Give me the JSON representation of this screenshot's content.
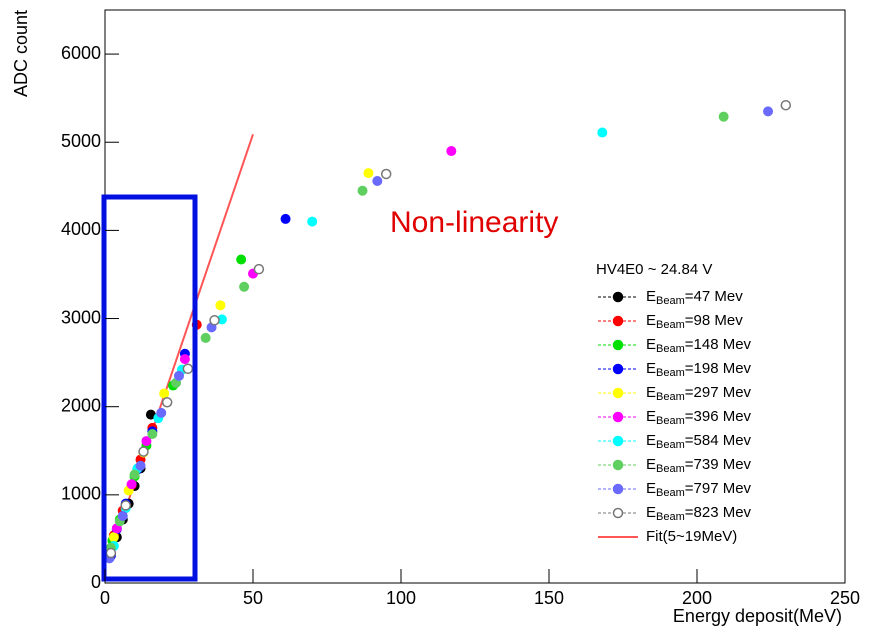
{
  "chart_data": {
    "type": "scatter",
    "xlabel": "Energy deposit(MeV)",
    "ylabel": "ADC count",
    "xlim": [
      0,
      250
    ],
    "ylim": [
      0,
      6500
    ],
    "xticks": [
      0,
      50,
      100,
      150,
      200,
      250
    ],
    "yticks": [
      0,
      1000,
      2000,
      3000,
      4000,
      5000,
      6000
    ],
    "legend_title": "HV4E0 ~ 24.84 V",
    "legend_position": "right",
    "annotation": "Non-linearity",
    "series": [
      {
        "name": "EBeam=47 Mev",
        "color": "#000000",
        "marker": "circle",
        "x": [
          2,
          4,
          6,
          8,
          10,
          12,
          15.5
        ],
        "values": [
          330,
          520,
          720,
          900,
          1100,
          1300,
          1910
        ]
      },
      {
        "name": "EBeam=98 Mev",
        "color": "#ff0000",
        "marker": "circle",
        "x": [
          3,
          6,
          9,
          12,
          16,
          31
        ],
        "values": [
          540,
          820,
          1110,
          1400,
          1760,
          2930
        ]
      },
      {
        "name": "EBeam=148 Mev",
        "color": "#00e000",
        "marker": "circle",
        "x": [
          2.5,
          5,
          10,
          14,
          23,
          46
        ],
        "values": [
          480,
          720,
          1210,
          1560,
          2240,
          3670
        ]
      },
      {
        "name": "EBeam=198 Mev",
        "color": "#0000ff",
        "marker": "circle",
        "x": [
          2,
          4,
          7,
          11,
          16,
          27,
          61
        ],
        "values": [
          310,
          610,
          900,
          1290,
          1720,
          2600,
          4130
        ]
      },
      {
        "name": "EBeam=297 Mev",
        "color": "#ffff00",
        "marker": "circle",
        "x": [
          3,
          8,
          13,
          20,
          39,
          89
        ],
        "values": [
          520,
          1050,
          1480,
          2150,
          3150,
          4650
        ]
      },
      {
        "name": "EBeam=396 Mev",
        "color": "#ff00ff",
        "marker": "circle",
        "x": [
          4,
          9,
          14,
          27,
          50,
          117
        ],
        "values": [
          620,
          1120,
          1610,
          2540,
          3510,
          4900
        ]
      },
      {
        "name": "EBeam=584 Mev",
        "color": "#00ffff",
        "marker": "circle",
        "x": [
          3,
          7,
          11,
          18,
          26,
          39.5,
          70,
          168
        ],
        "values": [
          420,
          850,
          1300,
          1870,
          2420,
          2990,
          4100,
          5110
        ]
      },
      {
        "name": "EBeam=739 Mev",
        "color": "#5fcf5f",
        "marker": "circle",
        "x": [
          2,
          5,
          10,
          16,
          24,
          34,
          47,
          87,
          209
        ],
        "values": [
          400,
          700,
          1230,
          1690,
          2270,
          2780,
          3360,
          4450,
          5290
        ]
      },
      {
        "name": "EBeam=797 Mev",
        "color": "#6a6aff",
        "marker": "circle",
        "x": [
          1.5,
          6,
          12,
          19,
          25,
          36,
          92,
          224
        ],
        "values": [
          280,
          760,
          1330,
          1930,
          2350,
          2900,
          4560,
          5350
        ]
      },
      {
        "name": "EBeam=823 Mev",
        "color": "#777777",
        "marker": "open-circle",
        "x": [
          2,
          7,
          13,
          21,
          28,
          37,
          52,
          95,
          230
        ],
        "values": [
          340,
          880,
          1490,
          2050,
          2430,
          2980,
          3560,
          4640,
          5420
        ]
      }
    ],
    "fit": {
      "name": "Fit(5~19MeV)",
      "color": "#ff5555",
      "x": [
        1,
        50
      ],
      "values": [
        250,
        5090
      ]
    }
  }
}
